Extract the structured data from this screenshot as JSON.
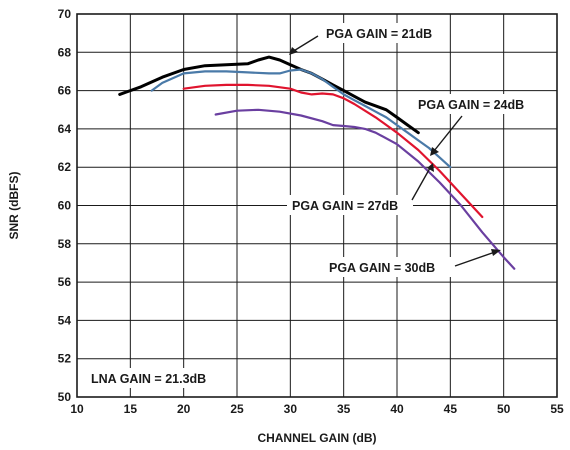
{
  "chart_data": {
    "type": "line",
    "xlabel": "CHANNEL GAIN (dB)",
    "ylabel": "SNR (dBFS)",
    "xlim": [
      10,
      55
    ],
    "ylim": [
      50,
      70
    ],
    "xticks": [
      10,
      15,
      20,
      25,
      30,
      35,
      40,
      45,
      50,
      55
    ],
    "yticks": [
      50,
      52,
      54,
      56,
      58,
      60,
      62,
      64,
      66,
      68,
      70
    ],
    "grid": true,
    "legend": "none (inline annotations with arrows)",
    "series": [
      {
        "name": "PGA GAIN = 21dB",
        "color": "#000000",
        "x": [
          14,
          16,
          18,
          20,
          22,
          24,
          26,
          27,
          28,
          29,
          30,
          31,
          32,
          33,
          34,
          35,
          36,
          37,
          38,
          39,
          40,
          41,
          42
        ],
        "y": [
          65.8,
          66.2,
          66.7,
          67.1,
          67.3,
          67.35,
          67.4,
          67.6,
          67.75,
          67.6,
          67.35,
          67.1,
          66.9,
          66.6,
          66.3,
          66.0,
          65.7,
          65.4,
          65.2,
          65.0,
          64.6,
          64.2,
          63.8
        ]
      },
      {
        "name": "PGA GAIN = 24dB",
        "color": "#4a7aa8",
        "x": [
          17,
          18,
          20,
          22,
          24,
          26,
          28,
          29,
          30,
          31,
          32,
          33,
          34,
          35,
          36,
          37,
          38,
          39,
          40,
          41,
          42,
          43,
          44,
          45
        ],
        "y": [
          66.0,
          66.4,
          66.9,
          67.0,
          67.0,
          66.95,
          66.9,
          66.9,
          67.05,
          67.1,
          66.9,
          66.6,
          66.2,
          65.8,
          65.5,
          65.2,
          64.9,
          64.6,
          64.2,
          63.8,
          63.4,
          63.0,
          62.5,
          62.0
        ]
      },
      {
        "name": "PGA GAIN = 27dB",
        "color": "#e0142e",
        "x": [
          20,
          22,
          24,
          26,
          28,
          30,
          31,
          32,
          33,
          34,
          35,
          36,
          38,
          40,
          42,
          44,
          46,
          48
        ],
        "y": [
          66.1,
          66.25,
          66.3,
          66.3,
          66.25,
          66.1,
          65.9,
          65.8,
          65.85,
          65.8,
          65.6,
          65.3,
          64.6,
          63.8,
          62.9,
          61.8,
          60.6,
          59.4
        ]
      },
      {
        "name": "PGA GAIN = 30dB",
        "color": "#6a3fa0",
        "x": [
          23,
          25,
          27,
          29,
          31,
          33,
          34,
          35,
          36,
          37,
          38,
          40,
          42,
          44,
          46,
          48,
          50,
          51
        ],
        "y": [
          64.75,
          64.95,
          65.0,
          64.9,
          64.7,
          64.4,
          64.2,
          64.15,
          64.1,
          64.0,
          63.8,
          63.2,
          62.3,
          61.2,
          60.0,
          58.6,
          57.3,
          56.7
        ]
      }
    ],
    "annotations": [
      {
        "text": "PGA GAIN = 21dB"
      },
      {
        "text": "PGA GAIN = 24dB"
      },
      {
        "text": "PGA GAIN = 27dB"
      },
      {
        "text": "PGA GAIN = 30dB"
      },
      {
        "text": "LNA GAIN = 21.3dB"
      }
    ]
  }
}
